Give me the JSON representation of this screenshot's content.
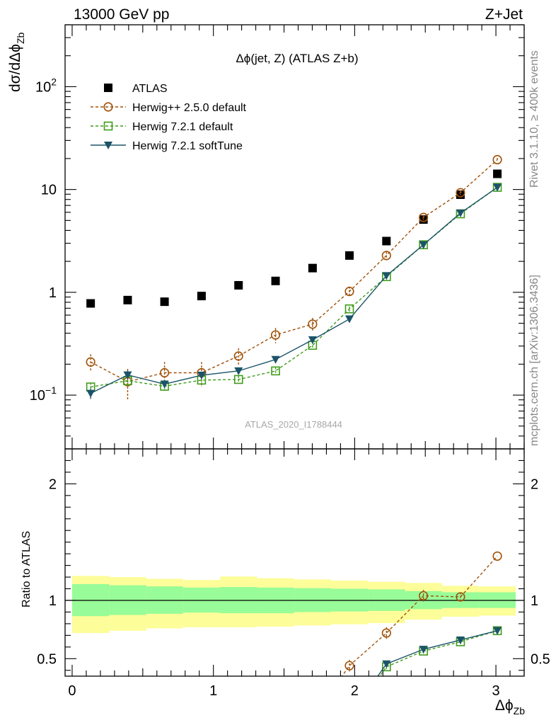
{
  "header": {
    "left_title": "13000 GeV pp",
    "right_title": "Z+Jet"
  },
  "side_labels": {
    "rivet": "Rivet 3.1.10, ≥ 400k events",
    "mcplots": "mcplots.cern.ch [arXiv:1306.3436]"
  },
  "watermark": "ATLAS_2020_I1788444",
  "colors": {
    "atlas": "#000000",
    "herwigpp": "#a0520a",
    "herwig721": "#3f9c1c",
    "softtune": "#1b5468",
    "band_inner": "#98fc98",
    "band_outer": "#fdfd99"
  },
  "chart_data": [
    {
      "type": "scatter",
      "title": "Δϕ(jet, Z) (ATLAS Z+b)",
      "ylabel": "dσ/dΔϕ_Zb",
      "xlabel": "Δϕ_Zb",
      "yscale": "log",
      "ylim": [
        0.03,
        400
      ],
      "xlim": [
        -0.05,
        3.2
      ],
      "ytick_labels": [
        {
          "value": 0.1,
          "label": "10",
          "exp": "−1"
        },
        {
          "value": 1,
          "label": "1",
          "exp": ""
        },
        {
          "value": 10,
          "label": "10",
          "exp": ""
        },
        {
          "value": 100,
          "label": "10",
          "exp": "2"
        }
      ],
      "bin_edges": [
        0,
        0.262,
        0.524,
        0.785,
        1.047,
        1.309,
        1.571,
        1.833,
        2.094,
        2.356,
        2.618,
        2.88,
        3.14
      ],
      "x": [
        0.131,
        0.393,
        0.654,
        0.916,
        1.178,
        1.44,
        1.702,
        1.963,
        2.225,
        2.487,
        2.749,
        3.01
      ],
      "legend": [
        "ATLAS",
        "Herwig++ 2.5.0 default",
        "Herwig 7.2.1 default",
        "Herwig 7.2.1 softTune"
      ],
      "series": [
        {
          "name": "ATLAS",
          "marker": "square",
          "values": [
            0.78,
            0.84,
            0.81,
            0.92,
            1.17,
            1.29,
            1.72,
            2.28,
            3.15,
            5.1,
            8.9,
            14.2
          ]
        },
        {
          "name": "Herwig++ 2.5.0 default",
          "marker": "open-circle",
          "dashed": true,
          "values": [
            0.21,
            0.135,
            0.165,
            0.165,
            0.24,
            0.385,
            0.49,
            1.02,
            2.28,
            5.35,
            9.3,
            19.5
          ],
          "errors": [
            0.04,
            0.045,
            0.045,
            0.045,
            0.045,
            0.065,
            0.075,
            0.12,
            0.2,
            0.3,
            0.5,
            0.8
          ]
        },
        {
          "name": "Herwig 7.2.1 default",
          "marker": "open-square",
          "dashed": true,
          "values": [
            0.12,
            0.138,
            0.122,
            0.14,
            0.142,
            0.172,
            0.305,
            0.69,
            1.42,
            2.9,
            5.8,
            10.5
          ],
          "errors": [
            0.012,
            0.012,
            0.012,
            0.015,
            0.012,
            0.015,
            0.025,
            0.04,
            0.07,
            0.15,
            0.25,
            0.4
          ]
        },
        {
          "name": "Herwig 7.2.1 softTune",
          "marker": "triangle-down",
          "dashed": false,
          "values": [
            0.104,
            0.157,
            0.128,
            0.156,
            0.172,
            0.222,
            0.345,
            0.55,
            1.45,
            2.9,
            5.9,
            10.5
          ],
          "errors": [
            0.012,
            0.015,
            0.012,
            0.012,
            0.012,
            0.015,
            0.02,
            0.03,
            0.06,
            0.12,
            0.2,
            0.35
          ]
        }
      ]
    },
    {
      "type": "line",
      "ylabel": "Ratio to ATLAS",
      "xlabel": "Δϕ_Zb",
      "ylim": [
        0.35,
        2.3
      ],
      "xlim": [
        -0.05,
        3.2
      ],
      "yticks": [
        0.5,
        1,
        2
      ],
      "ytick_labels": [
        "0.5",
        "1",
        "2"
      ],
      "xticks": [
        0,
        1,
        2,
        3
      ],
      "xtick_labels": [
        "0",
        "1",
        "2",
        "3"
      ],
      "bin_edges": [
        0,
        0.262,
        0.524,
        0.785,
        1.047,
        1.309,
        1.571,
        1.833,
        2.094,
        2.356,
        2.618,
        2.88,
        3.14
      ],
      "band_inner": [
        {
          "lo": 0.865,
          "hi": 1.14
        },
        {
          "lo": 0.875,
          "hi": 1.13
        },
        {
          "lo": 0.885,
          "hi": 1.12
        },
        {
          "lo": 0.895,
          "hi": 1.11
        },
        {
          "lo": 0.89,
          "hi": 1.115
        },
        {
          "lo": 0.89,
          "hi": 1.11
        },
        {
          "lo": 0.9,
          "hi": 1.105
        },
        {
          "lo": 0.905,
          "hi": 1.1
        },
        {
          "lo": 0.91,
          "hi": 1.095
        },
        {
          "lo": 0.925,
          "hi": 1.08
        },
        {
          "lo": 0.935,
          "hi": 1.07
        },
        {
          "lo": 0.935,
          "hi": 1.07
        }
      ],
      "band_outer": [
        {
          "lo": 0.72,
          "hi": 1.21
        },
        {
          "lo": 0.74,
          "hi": 1.2
        },
        {
          "lo": 0.76,
          "hi": 1.185
        },
        {
          "lo": 0.77,
          "hi": 1.175
        },
        {
          "lo": 0.77,
          "hi": 1.205
        },
        {
          "lo": 0.775,
          "hi": 1.19
        },
        {
          "lo": 0.785,
          "hi": 1.18
        },
        {
          "lo": 0.795,
          "hi": 1.17
        },
        {
          "lo": 0.805,
          "hi": 1.16
        },
        {
          "lo": 0.835,
          "hi": 1.15
        },
        {
          "lo": 0.86,
          "hi": 1.125
        },
        {
          "lo": 0.87,
          "hi": 1.12
        }
      ],
      "series": [
        {
          "name": "Herwig++ 2.5.0 default",
          "marker": "open-circle",
          "dashed": true,
          "x": [
            1.963,
            2.225,
            2.487,
            2.749,
            3.01
          ],
          "values": [
            0.44,
            0.72,
            1.04,
            1.03,
            1.38
          ],
          "errors": [
            0.05,
            0.05,
            0.05,
            0.04,
            0.0
          ]
        },
        {
          "name": "Herwig 7.2.1 default",
          "marker": "open-square",
          "dashed": true,
          "x": [
            2.225,
            2.487,
            2.749,
            3.01
          ],
          "values": [
            0.43,
            0.565,
            0.645,
            0.74
          ],
          "errors": [
            0.02,
            0.02,
            0.02,
            0.02
          ]
        },
        {
          "name": "Herwig 7.2.1 softTune",
          "marker": "triangle-down",
          "dashed": false,
          "x": [
            2.225,
            2.487,
            2.749,
            3.01
          ],
          "values": [
            0.455,
            0.58,
            0.66,
            0.74
          ],
          "errors": [
            0.02,
            0.02,
            0.02,
            0.02
          ]
        }
      ]
    }
  ]
}
